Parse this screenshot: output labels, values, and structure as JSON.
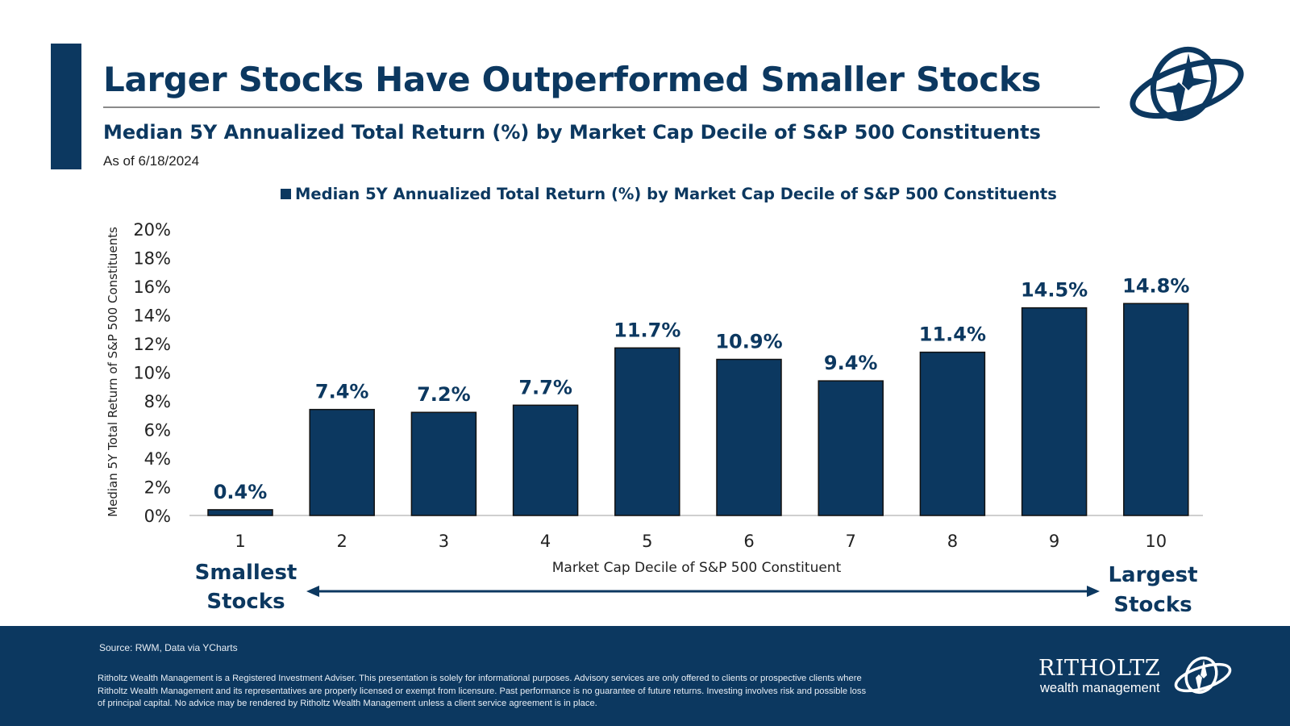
{
  "header": {
    "title": "Larger Stocks Have Outperformed Smaller Stocks",
    "subtitle": "Median 5Y Annualized Total Return (%) by Market Cap Decile of S&P 500 Constituents",
    "as_of": "As of 6/18/2024"
  },
  "colors": {
    "brand_navy": "#0c3860",
    "bar": "#0c3860",
    "footer_bg": "#0c3860"
  },
  "chart_data": {
    "type": "bar",
    "legend": "Median 5Y Annualized Total Return (%) by Market Cap Decile of S&P 500 Constituents",
    "legend_position": "top",
    "categories": [
      "1",
      "2",
      "3",
      "4",
      "5",
      "6",
      "7",
      "8",
      "9",
      "10"
    ],
    "values": [
      0.4,
      7.4,
      7.2,
      7.7,
      11.7,
      10.9,
      9.4,
      11.4,
      14.5,
      14.8
    ],
    "data_labels": [
      "0.4%",
      "7.4%",
      "7.2%",
      "7.7%",
      "11.7%",
      "10.9%",
      "9.4%",
      "11.4%",
      "14.5%",
      "14.8%"
    ],
    "ylim": [
      0,
      20
    ],
    "yticks": [
      "0%",
      "2%",
      "4%",
      "6%",
      "8%",
      "10%",
      "12%",
      "14%",
      "16%",
      "18%",
      "20%"
    ],
    "xlabel": "Market Cap Decile of S&P 500 Constituent",
    "ylabel": "Median 5Y Total Return of S&P 500 Constituents",
    "grid": false,
    "annotations": {
      "left": "Smallest Stocks",
      "right": "Largest Stocks"
    }
  },
  "footer": {
    "source": "Source: RWM, Data via YCharts",
    "disclaimer": "Ritholtz Wealth Management is a Registered Investment Adviser. This presentation is solely for informational purposes. Advisory services are only offered to clients or prospective clients where Ritholtz Wealth Management and its representatives are properly licensed or exempt from licensure. Past performance is no guarantee of future returns. Investing involves risk and possible loss of principal capital. No advice may be rendered by Ritholtz Wealth Management unless a client service agreement is in place.",
    "brand_name": "RITHOLTZ",
    "brand_sub": "wealth management"
  },
  "icons": {
    "header_logo": "compass-rose-logo-icon",
    "footer_logo": "compass-rose-logo-icon"
  }
}
